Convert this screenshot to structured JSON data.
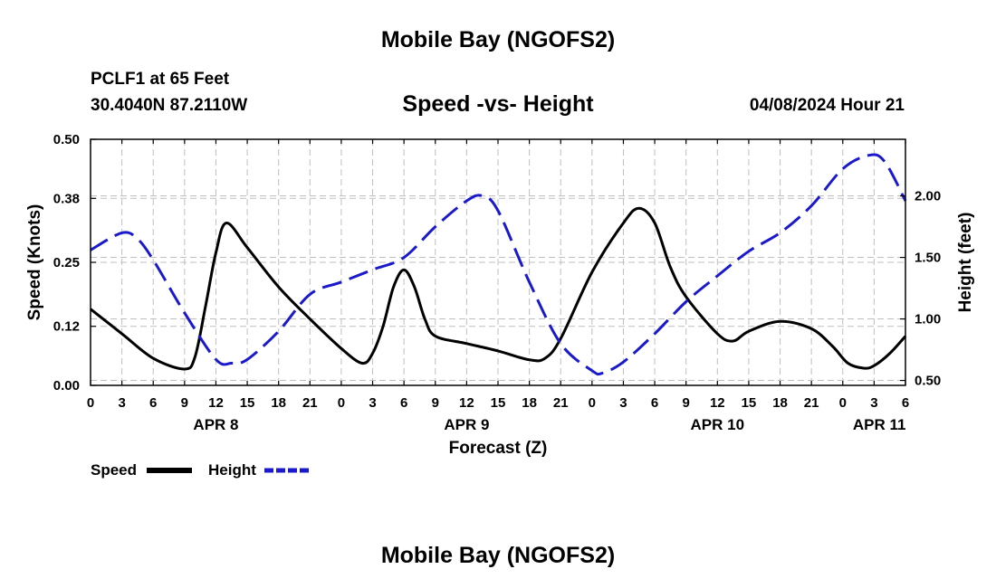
{
  "header": {
    "title": "Mobile Bay (NGOFS2)",
    "station": "PCLF1 at 65 Feet",
    "coords": "30.4040N  87.2110W",
    "chart_title": "Speed -vs- Height",
    "datetime": "04/08/2024 Hour 21"
  },
  "footer": {
    "title": "Mobile Bay (NGOFS2)"
  },
  "legend": {
    "speed_label": "Speed",
    "height_label": "Height"
  },
  "colors": {
    "speed": "#000000",
    "height": "#1a1acc",
    "grid": "#bfbfbf"
  },
  "chart_data": {
    "type": "line",
    "title": "Speed -vs- Height",
    "xlabel": "Forecast (Z)",
    "ylabel": "Speed (Knots)",
    "y2label": "Height (feet)",
    "xlim": [
      0,
      78
    ],
    "ylim": [
      0,
      0.5
    ],
    "y2lim": [
      0.46,
      2.46
    ],
    "x_ticks": [
      0,
      3,
      6,
      9,
      12,
      15,
      18,
      21,
      24,
      27,
      30,
      33,
      36,
      39,
      42,
      45,
      48,
      51,
      54,
      57,
      60,
      63,
      66,
      69,
      72,
      75,
      78
    ],
    "x_tick_labels": [
      "0",
      "3",
      "6",
      "9",
      "12",
      "15",
      "18",
      "21",
      "0",
      "3",
      "6",
      "9",
      "12",
      "15",
      "18",
      "21",
      "0",
      "3",
      "6",
      "9",
      "12",
      "15",
      "18",
      "21",
      "0",
      "3",
      "6"
    ],
    "y_ticks": [
      0,
      0.12,
      0.25,
      0.38,
      0.5
    ],
    "y_tick_labels": [
      "0.00",
      "0.12",
      "0.25",
      "0.38",
      "0.50"
    ],
    "y2_ticks": [
      0.5,
      1.0,
      1.5,
      2.0
    ],
    "y2_tick_labels": [
      "0.50",
      "1.00",
      "1.50",
      "2.00"
    ],
    "day_labels": [
      {
        "label": "APR 8",
        "x": 12
      },
      {
        "label": "APR 9",
        "x": 36
      },
      {
        "label": "APR 10",
        "x": 60
      },
      {
        "label": "APR 11",
        "x": 75.5
      }
    ],
    "series": [
      {
        "name": "Speed",
        "axis": "left",
        "style": "solid",
        "points": [
          [
            0,
            0.155
          ],
          [
            3,
            0.105
          ],
          [
            6,
            0.055
          ],
          [
            9,
            0.033
          ],
          [
            10,
            0.058
          ],
          [
            11,
            0.16
          ],
          [
            12,
            0.27
          ],
          [
            13,
            0.33
          ],
          [
            15,
            0.28
          ],
          [
            18,
            0.2
          ],
          [
            21,
            0.135
          ],
          [
            24,
            0.075
          ],
          [
            26,
            0.045
          ],
          [
            27,
            0.065
          ],
          [
            28,
            0.12
          ],
          [
            29,
            0.2
          ],
          [
            30,
            0.235
          ],
          [
            31,
            0.2
          ],
          [
            32,
            0.135
          ],
          [
            33,
            0.1
          ],
          [
            36,
            0.085
          ],
          [
            39,
            0.07
          ],
          [
            42,
            0.052
          ],
          [
            43.5,
            0.055
          ],
          [
            45,
            0.095
          ],
          [
            48,
            0.23
          ],
          [
            51,
            0.33
          ],
          [
            52.5,
            0.36
          ],
          [
            54,
            0.33
          ],
          [
            55.5,
            0.24
          ],
          [
            57,
            0.18
          ],
          [
            60,
            0.105
          ],
          [
            61.5,
            0.09
          ],
          [
            63,
            0.11
          ],
          [
            66,
            0.13
          ],
          [
            69,
            0.115
          ],
          [
            71,
            0.08
          ],
          [
            72.5,
            0.045
          ],
          [
            74,
            0.035
          ],
          [
            75,
            0.04
          ],
          [
            76.5,
            0.065
          ],
          [
            78,
            0.1
          ]
        ]
      },
      {
        "name": "Height",
        "axis": "right",
        "style": "dashed",
        "points": [
          [
            0,
            1.56
          ],
          [
            3,
            1.7
          ],
          [
            4.5,
            1.65
          ],
          [
            6,
            1.48
          ],
          [
            9,
            1.05
          ],
          [
            12,
            0.67
          ],
          [
            13.5,
            0.64
          ],
          [
            15,
            0.67
          ],
          [
            18,
            0.9
          ],
          [
            21,
            1.2
          ],
          [
            24,
            1.3
          ],
          [
            27,
            1.4
          ],
          [
            30,
            1.5
          ],
          [
            33,
            1.75
          ],
          [
            36,
            1.96
          ],
          [
            37.5,
            2.0
          ],
          [
            39,
            1.88
          ],
          [
            42,
            1.3
          ],
          [
            45,
            0.8
          ],
          [
            48,
            0.58
          ],
          [
            49,
            0.56
          ],
          [
            51,
            0.65
          ],
          [
            54,
            0.88
          ],
          [
            57,
            1.14
          ],
          [
            60,
            1.35
          ],
          [
            63,
            1.55
          ],
          [
            66,
            1.7
          ],
          [
            69,
            1.92
          ],
          [
            72,
            2.22
          ],
          [
            74.5,
            2.33
          ],
          [
            76,
            2.28
          ],
          [
            78,
            1.96
          ]
        ]
      }
    ]
  }
}
